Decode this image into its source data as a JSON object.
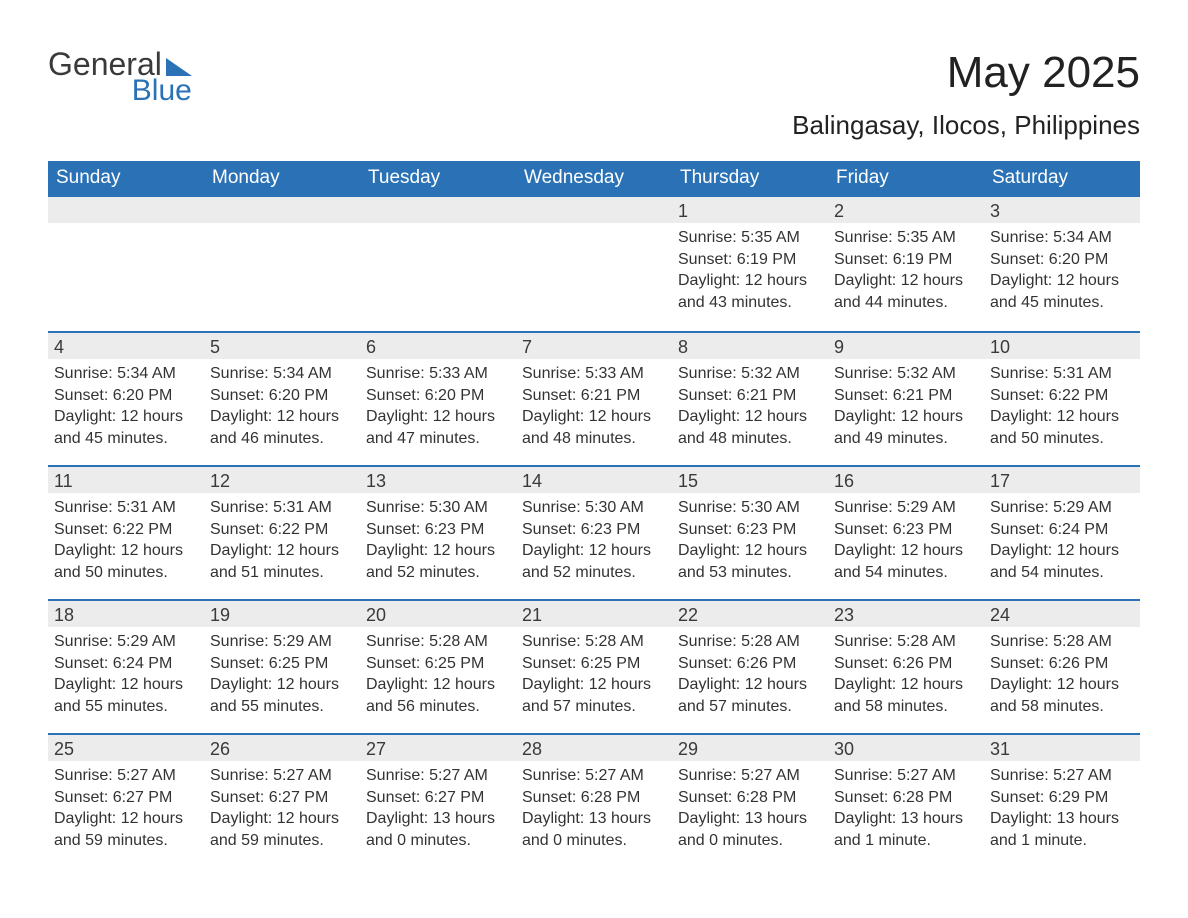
{
  "logo": {
    "general": "General",
    "blue": "Blue"
  },
  "title": "May 2025",
  "location": "Balingasay, Ilocos, Philippines",
  "colors": {
    "header_bg": "#2a72b5",
    "header_text": "#ffffff",
    "daynum_bg": "#ececec",
    "border": "#2a72b5",
    "body_text": "#333333",
    "page_bg": "#ffffff"
  },
  "weekdays": [
    "Sunday",
    "Monday",
    "Tuesday",
    "Wednesday",
    "Thursday",
    "Friday",
    "Saturday"
  ],
  "weeks": [
    [
      null,
      null,
      null,
      null,
      {
        "n": "1",
        "sunrise": "5:35 AM",
        "sunset": "6:19 PM",
        "daylight": "12 hours and 43 minutes."
      },
      {
        "n": "2",
        "sunrise": "5:35 AM",
        "sunset": "6:19 PM",
        "daylight": "12 hours and 44 minutes."
      },
      {
        "n": "3",
        "sunrise": "5:34 AM",
        "sunset": "6:20 PM",
        "daylight": "12 hours and 45 minutes."
      }
    ],
    [
      {
        "n": "4",
        "sunrise": "5:34 AM",
        "sunset": "6:20 PM",
        "daylight": "12 hours and 45 minutes."
      },
      {
        "n": "5",
        "sunrise": "5:34 AM",
        "sunset": "6:20 PM",
        "daylight": "12 hours and 46 minutes."
      },
      {
        "n": "6",
        "sunrise": "5:33 AM",
        "sunset": "6:20 PM",
        "daylight": "12 hours and 47 minutes."
      },
      {
        "n": "7",
        "sunrise": "5:33 AM",
        "sunset": "6:21 PM",
        "daylight": "12 hours and 48 minutes."
      },
      {
        "n": "8",
        "sunrise": "5:32 AM",
        "sunset": "6:21 PM",
        "daylight": "12 hours and 48 minutes."
      },
      {
        "n": "9",
        "sunrise": "5:32 AM",
        "sunset": "6:21 PM",
        "daylight": "12 hours and 49 minutes."
      },
      {
        "n": "10",
        "sunrise": "5:31 AM",
        "sunset": "6:22 PM",
        "daylight": "12 hours and 50 minutes."
      }
    ],
    [
      {
        "n": "11",
        "sunrise": "5:31 AM",
        "sunset": "6:22 PM",
        "daylight": "12 hours and 50 minutes."
      },
      {
        "n": "12",
        "sunrise": "5:31 AM",
        "sunset": "6:22 PM",
        "daylight": "12 hours and 51 minutes."
      },
      {
        "n": "13",
        "sunrise": "5:30 AM",
        "sunset": "6:23 PM",
        "daylight": "12 hours and 52 minutes."
      },
      {
        "n": "14",
        "sunrise": "5:30 AM",
        "sunset": "6:23 PM",
        "daylight": "12 hours and 52 minutes."
      },
      {
        "n": "15",
        "sunrise": "5:30 AM",
        "sunset": "6:23 PM",
        "daylight": "12 hours and 53 minutes."
      },
      {
        "n": "16",
        "sunrise": "5:29 AM",
        "sunset": "6:23 PM",
        "daylight": "12 hours and 54 minutes."
      },
      {
        "n": "17",
        "sunrise": "5:29 AM",
        "sunset": "6:24 PM",
        "daylight": "12 hours and 54 minutes."
      }
    ],
    [
      {
        "n": "18",
        "sunrise": "5:29 AM",
        "sunset": "6:24 PM",
        "daylight": "12 hours and 55 minutes."
      },
      {
        "n": "19",
        "sunrise": "5:29 AM",
        "sunset": "6:25 PM",
        "daylight": "12 hours and 55 minutes."
      },
      {
        "n": "20",
        "sunrise": "5:28 AM",
        "sunset": "6:25 PM",
        "daylight": "12 hours and 56 minutes."
      },
      {
        "n": "21",
        "sunrise": "5:28 AM",
        "sunset": "6:25 PM",
        "daylight": "12 hours and 57 minutes."
      },
      {
        "n": "22",
        "sunrise": "5:28 AM",
        "sunset": "6:26 PM",
        "daylight": "12 hours and 57 minutes."
      },
      {
        "n": "23",
        "sunrise": "5:28 AM",
        "sunset": "6:26 PM",
        "daylight": "12 hours and 58 minutes."
      },
      {
        "n": "24",
        "sunrise": "5:28 AM",
        "sunset": "6:26 PM",
        "daylight": "12 hours and 58 minutes."
      }
    ],
    [
      {
        "n": "25",
        "sunrise": "5:27 AM",
        "sunset": "6:27 PM",
        "daylight": "12 hours and 59 minutes."
      },
      {
        "n": "26",
        "sunrise": "5:27 AM",
        "sunset": "6:27 PM",
        "daylight": "12 hours and 59 minutes."
      },
      {
        "n": "27",
        "sunrise": "5:27 AM",
        "sunset": "6:27 PM",
        "daylight": "13 hours and 0 minutes."
      },
      {
        "n": "28",
        "sunrise": "5:27 AM",
        "sunset": "6:28 PM",
        "daylight": "13 hours and 0 minutes."
      },
      {
        "n": "29",
        "sunrise": "5:27 AM",
        "sunset": "6:28 PM",
        "daylight": "13 hours and 0 minutes."
      },
      {
        "n": "30",
        "sunrise": "5:27 AM",
        "sunset": "6:28 PM",
        "daylight": "13 hours and 1 minute."
      },
      {
        "n": "31",
        "sunrise": "5:27 AM",
        "sunset": "6:29 PM",
        "daylight": "13 hours and 1 minute."
      }
    ]
  ],
  "labels": {
    "sunrise": "Sunrise: ",
    "sunset": "Sunset: ",
    "daylight": "Daylight: "
  }
}
